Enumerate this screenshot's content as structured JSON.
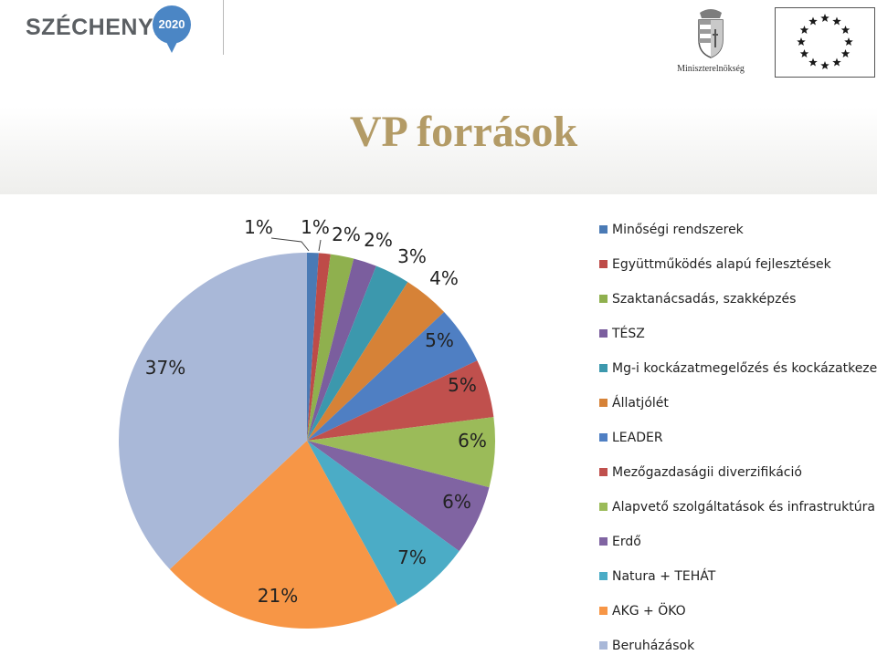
{
  "header": {
    "szechenyi_brand": "SZÉCHENYI",
    "szechenyi_year": "2020",
    "ministry_label": "Miniszterelnökség"
  },
  "title": "VP források",
  "chart_data": {
    "type": "pie",
    "start_angle_deg": 0,
    "direction": "clockwise",
    "legend_position": "right",
    "categories": [
      "Minőségi rendszerek",
      "Együttműködés alapú fejlesztések",
      "Szaktanácsadás, szakképzés",
      "TÉSZ",
      "Mg-i kockázatmegelőzés és kockázatkezelés",
      "Állatjólét",
      "LEADER",
      "Mezőgazdaságii diverzifikáció",
      "Alapvető szolgáltatások és infrastruktúra",
      "Erdő",
      "Natura + TEHÁT",
      "AKG + ÖKO",
      "Beruházások"
    ],
    "values": [
      1,
      1,
      2,
      2,
      3,
      4,
      5,
      5,
      6,
      6,
      7,
      21,
      37
    ],
    "data_labels": [
      "1%",
      "1%",
      "2%",
      "2%",
      "3%",
      "4%",
      "5%",
      "5%",
      "6%",
      "6%",
      "7%",
      "21%",
      "37%"
    ],
    "colors": [
      "#4a7ab5",
      "#be4b48",
      "#8fb04e",
      "#7b5e9e",
      "#3c98ad",
      "#d68237",
      "#4f7fc3",
      "#c0504d",
      "#9bbb59",
      "#8064a2",
      "#4bacc6",
      "#f79646",
      "#a9b8d8"
    ]
  }
}
